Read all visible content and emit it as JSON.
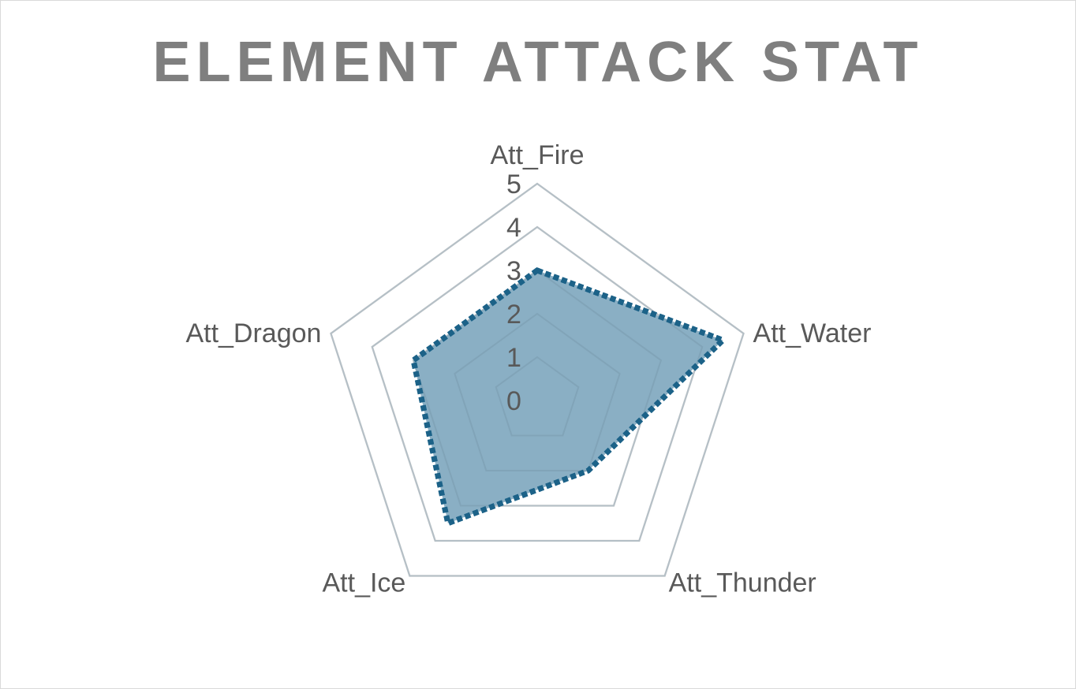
{
  "chart_data": {
    "type": "radar",
    "title": "ELEMENT ATTACK STAT",
    "categories": [
      "Att_Fire",
      "Att_Water",
      "Att_Thunder",
      "Att_Ice",
      "Att_Dragon"
    ],
    "series": [
      {
        "values": [
          3,
          4.5,
          2,
          3.5,
          3
        ]
      }
    ],
    "rlim": [
      0,
      5
    ],
    "ticks": [
      "0",
      "1",
      "2",
      "3",
      "4",
      "5"
    ],
    "grid": true,
    "legend": "none",
    "colors": {
      "fill": "#8aafc4",
      "line": "#1c6288",
      "grid": "#d9d9d9",
      "text": "#595959",
      "title": "#7f7f7f"
    }
  }
}
